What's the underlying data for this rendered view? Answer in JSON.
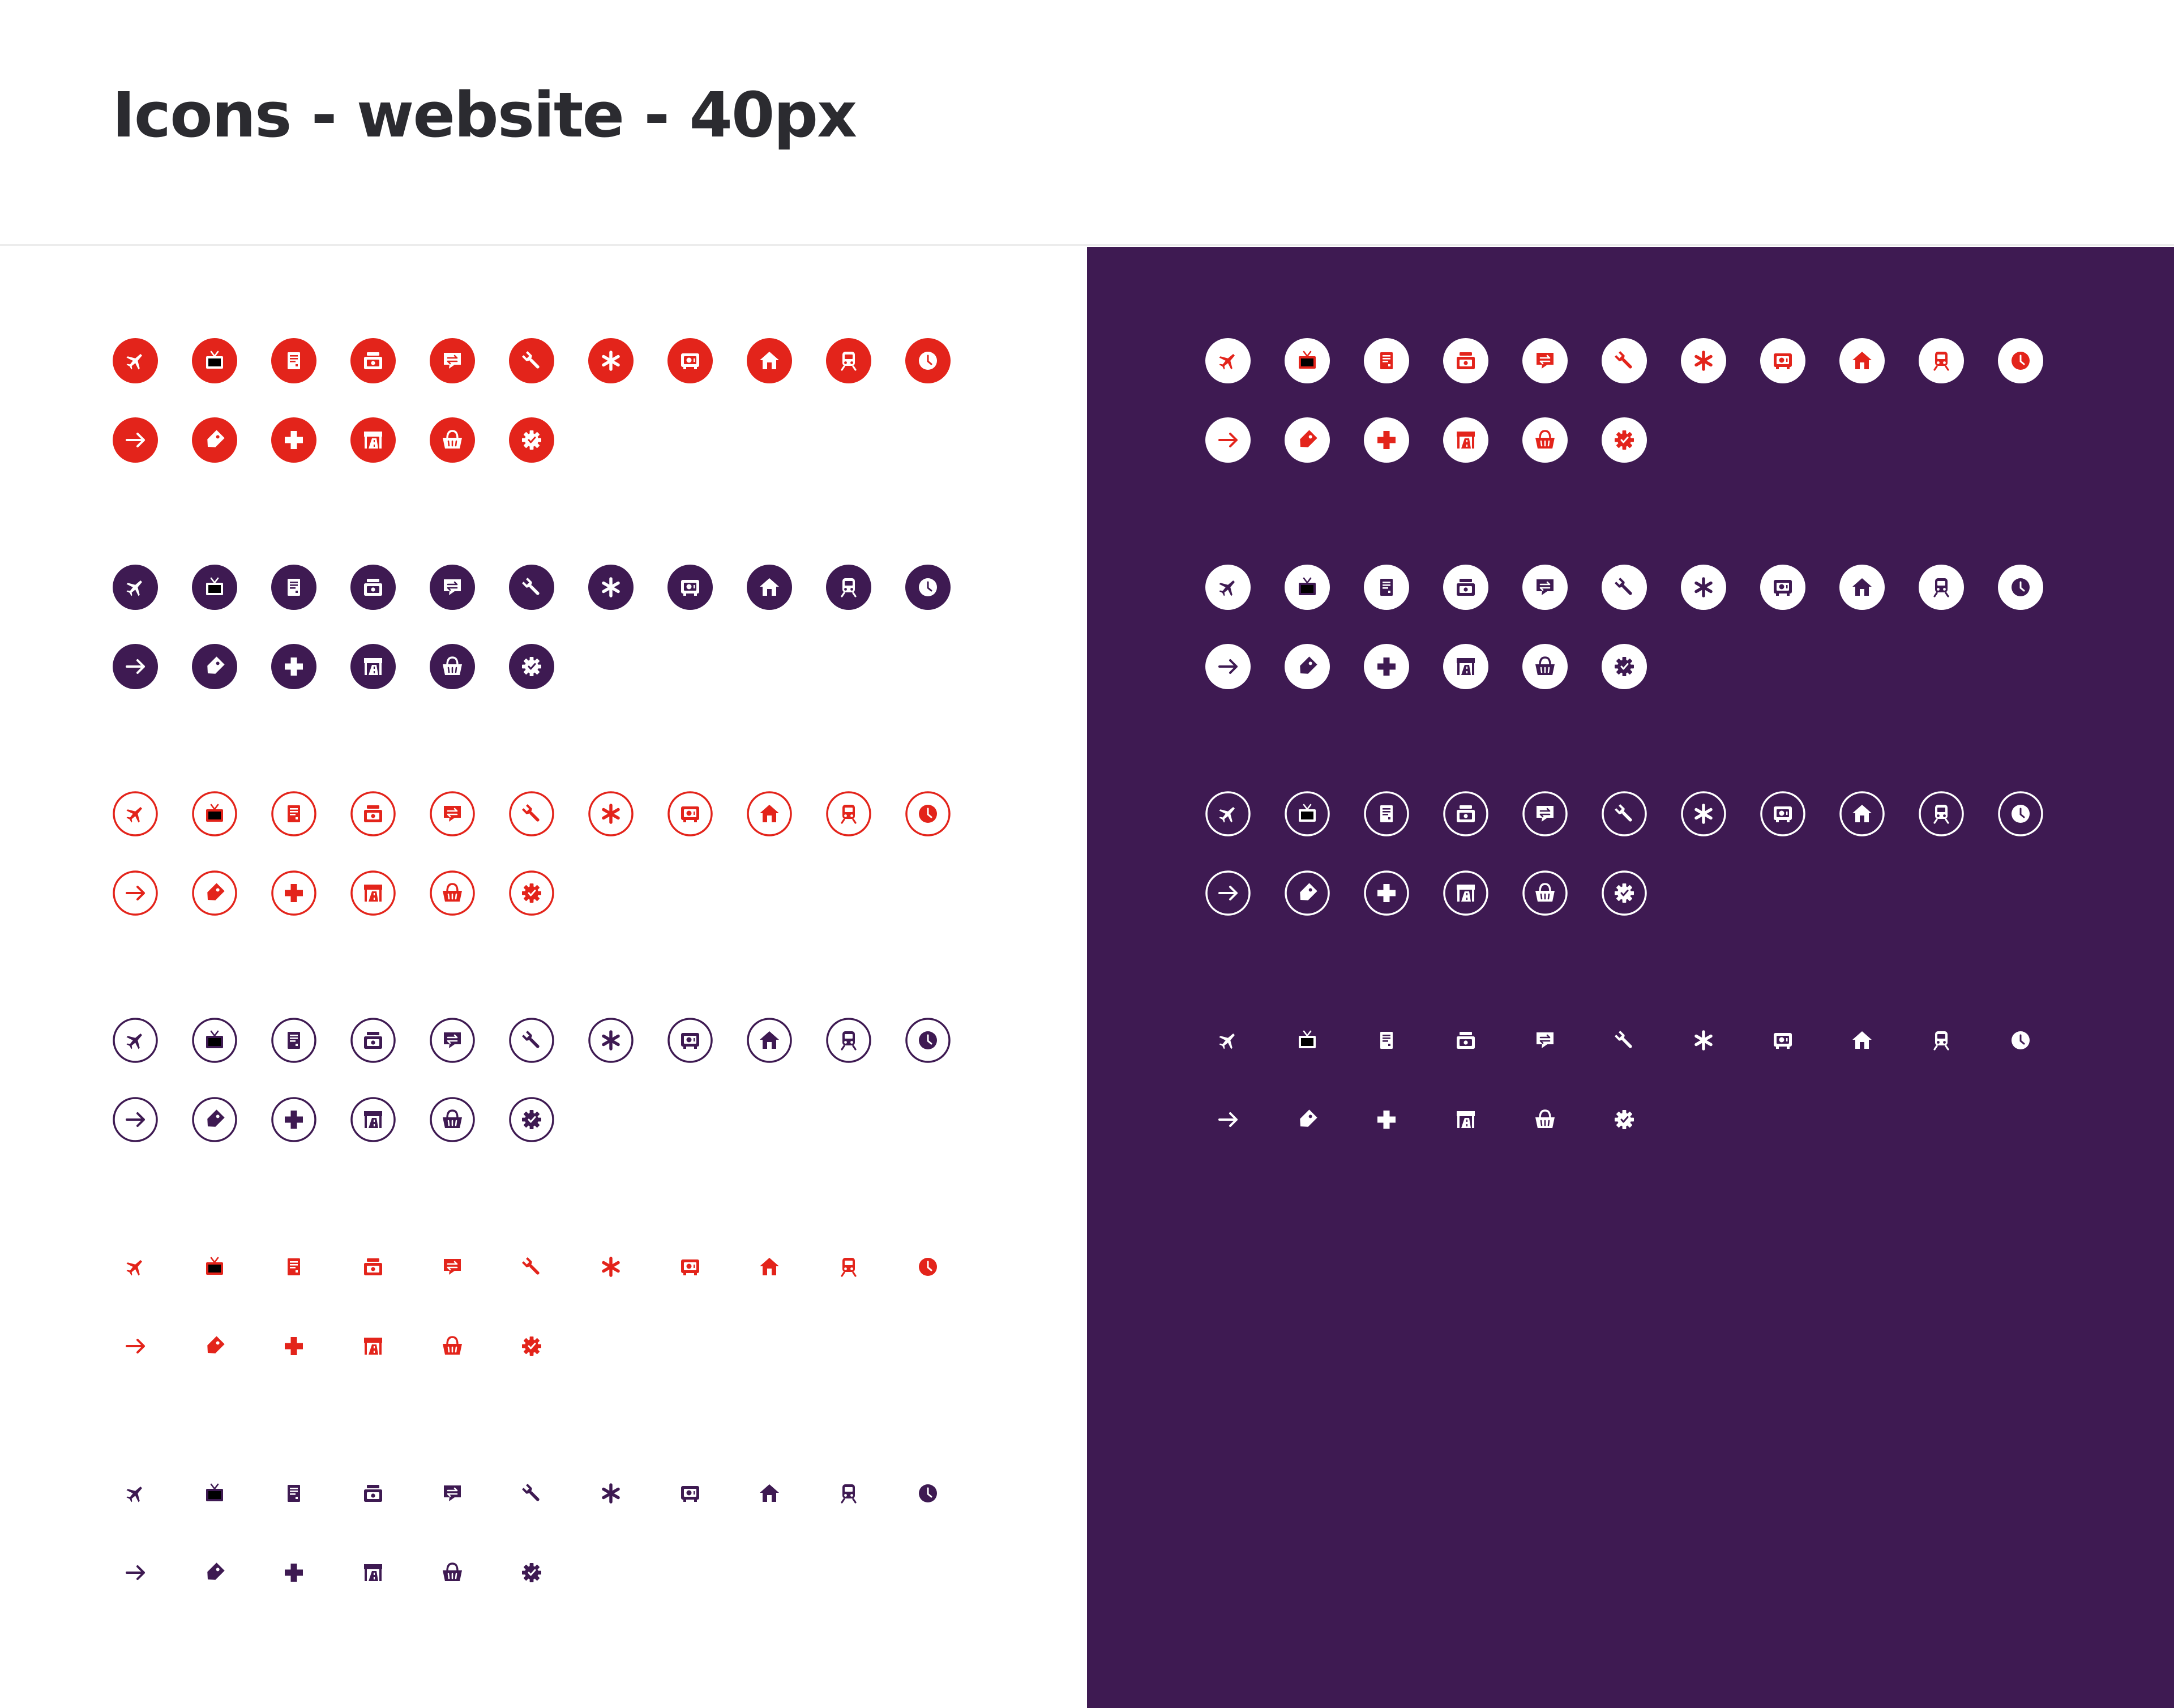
{
  "page": {
    "title": "Icons - website - 40px"
  },
  "colors": {
    "red": "#e3241b",
    "purple": "#3e1a52",
    "white": "#ffffff",
    "title_text": "#2b2b30",
    "divider": "#ececec"
  },
  "icon_names": [
    "airplane",
    "tv",
    "document",
    "cash-register",
    "exchange",
    "wrench",
    "asterisk",
    "safe",
    "home",
    "train",
    "clock",
    "arrow-right",
    "tag",
    "plus",
    "highway",
    "basket",
    "gear-badge"
  ],
  "panels": [
    {
      "name": "light",
      "background": "#ffffff",
      "sets": [
        {
          "style": "filled",
          "color": "#e3241b",
          "inner": "#ffffff"
        },
        {
          "style": "filled",
          "color": "#3e1a52",
          "inner": "#ffffff"
        },
        {
          "style": "outline",
          "color": "#e3241b"
        },
        {
          "style": "outline",
          "color": "#3e1a52"
        },
        {
          "style": "plain",
          "color": "#e3241b"
        },
        {
          "style": "plain",
          "color": "#3e1a52"
        }
      ]
    },
    {
      "name": "dark",
      "background": "#3e1a52",
      "sets": [
        {
          "style": "filled",
          "color": "#ffffff",
          "inner": "#e3241b"
        },
        {
          "style": "filled",
          "color": "#ffffff",
          "inner": "#3e1a52"
        },
        {
          "style": "outline",
          "color": "#ffffff"
        },
        {
          "style": "plain",
          "color": "#ffffff"
        }
      ]
    }
  ]
}
